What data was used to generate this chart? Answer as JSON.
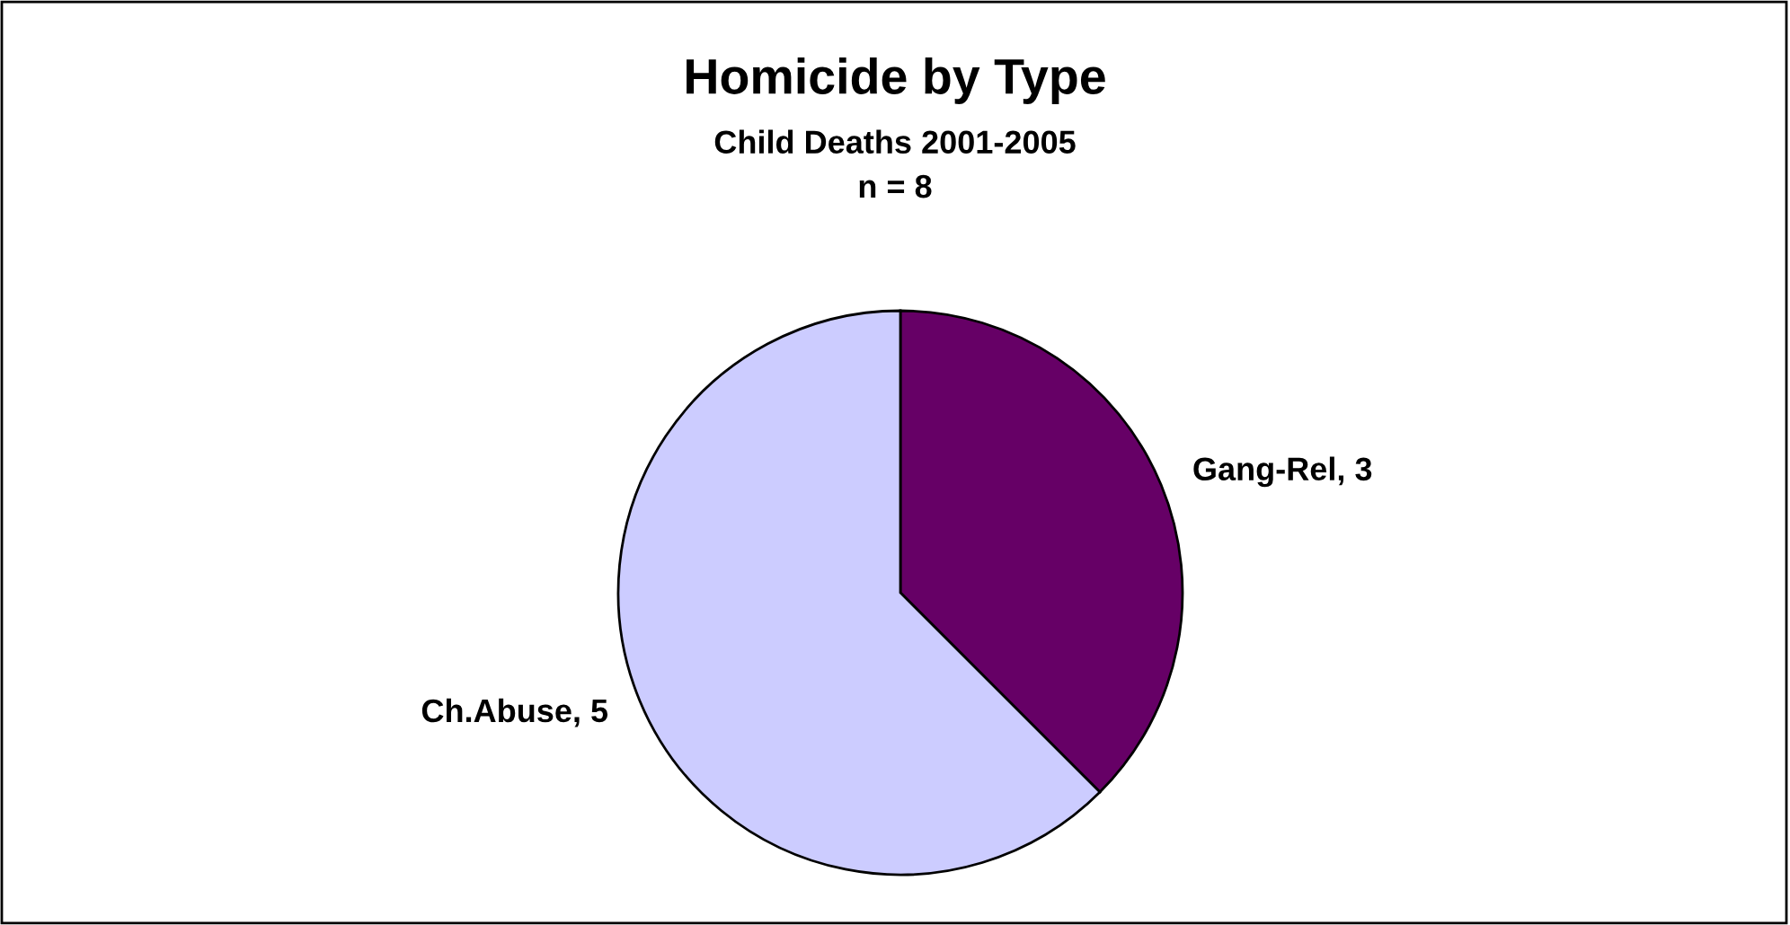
{
  "chart_data": {
    "type": "pie",
    "title": "Homicide by Type",
    "subtitle": "Child Deaths 2001-2005\nn = 8",
    "categories": [
      "Gang-Rel",
      "Ch.Abuse"
    ],
    "values": [
      3,
      5
    ],
    "colors": [
      "#660066",
      "#ccccff"
    ],
    "value_labels": [
      ", 3",
      ", 5"
    ],
    "legend": false
  }
}
